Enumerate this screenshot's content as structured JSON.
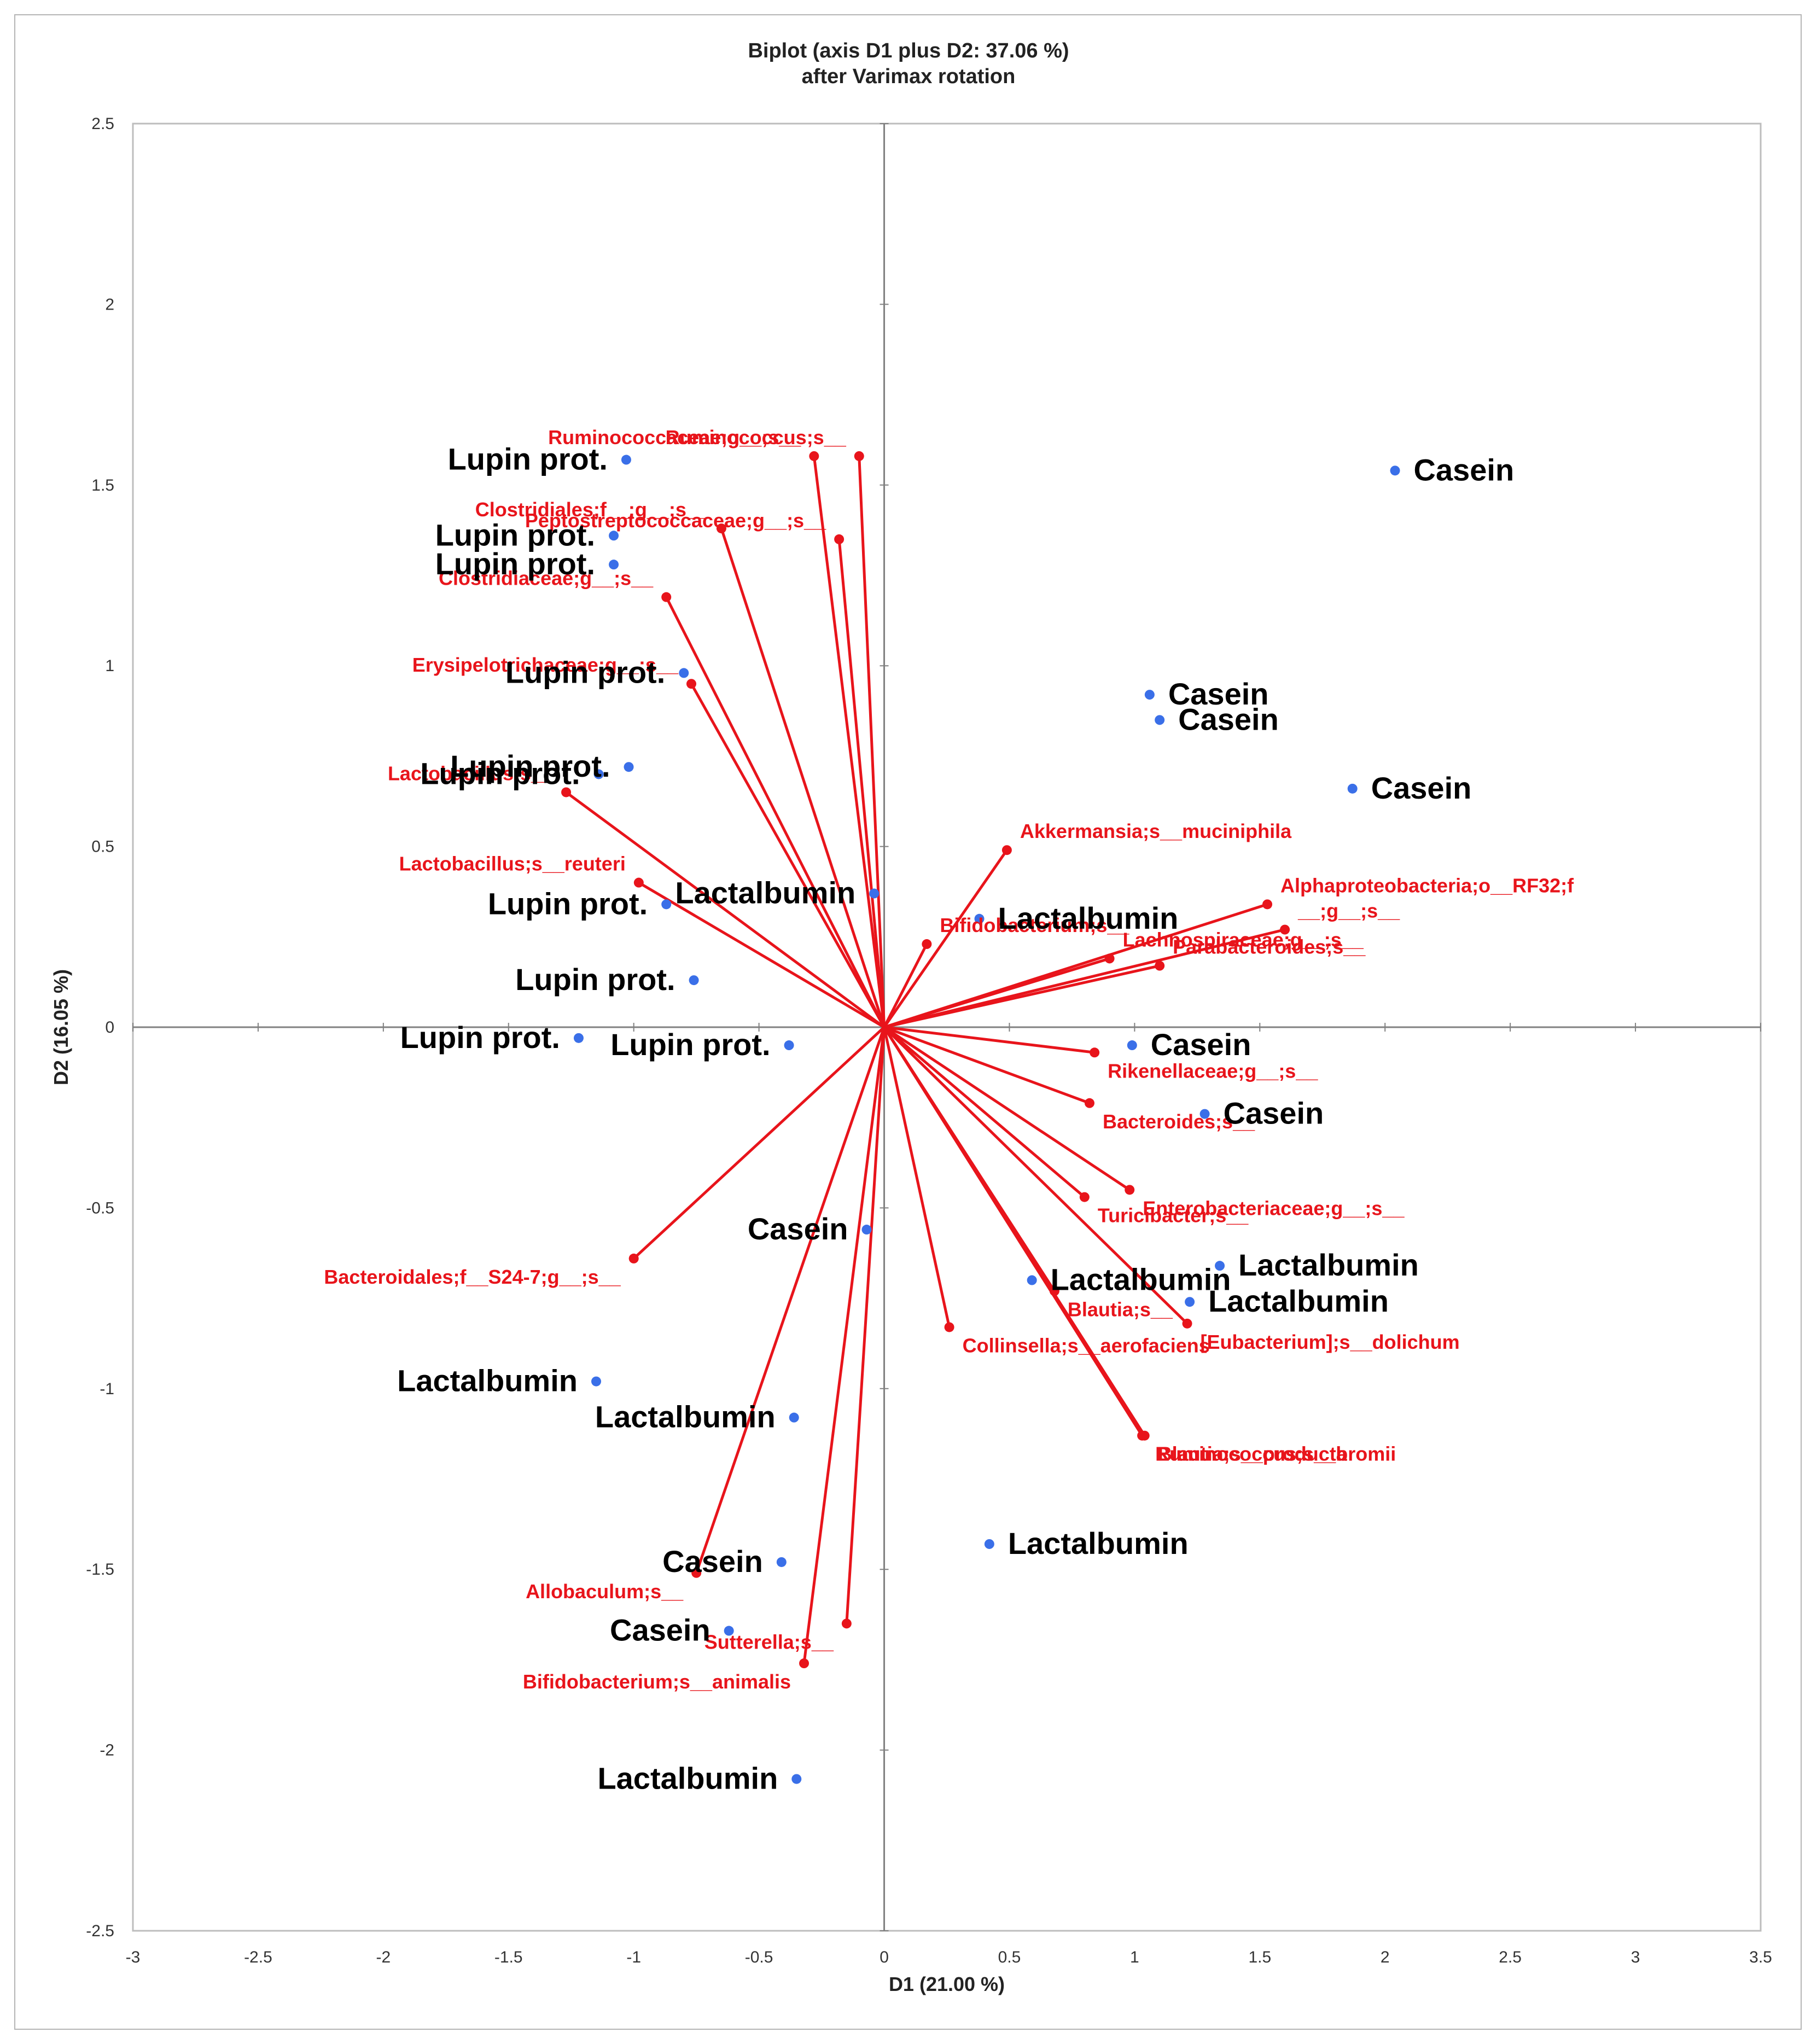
{
  "chart_data": {
    "type": "scatter",
    "subtype": "biplot",
    "title": "Biplot (axis D1 plus D2: 37.06 %)",
    "subtitle": "after Varimax rotation",
    "xlabel": "D1 (21.00 %)",
    "ylabel": "D2 (16.05 %)",
    "xlim": [
      -3,
      3.5
    ],
    "ylim": [
      -2.5,
      2.5
    ],
    "x_ticks": [
      "-3",
      "-2.5",
      "-2",
      "-1.5",
      "-1",
      "-0.5",
      "0",
      "0.5",
      "1",
      "1.5",
      "2",
      "2.5",
      "3",
      "3.5"
    ],
    "y_ticks": [
      "2.5",
      "2",
      "1.5",
      "1",
      "0.5",
      "0",
      "-0.5",
      "-1",
      "-1.5",
      "-2",
      "-2.5"
    ],
    "grid": false,
    "colors": {
      "variables": "#e8141b",
      "observations": "#3a6fe8",
      "axes": "#808080"
    },
    "variables": [
      {
        "label": "Ruminococcaceae;g__;s__",
        "x": -0.28,
        "y": 1.58
      },
      {
        "label": "Ruminococcus;s__",
        "x": -0.1,
        "y": 1.58
      },
      {
        "label": "Peptostreptococcaceae;g__;s__",
        "x": -0.18,
        "y": 1.35
      },
      {
        "label": "Clostridiales;f__;g__;s__",
        "x": -0.65,
        "y": 1.38
      },
      {
        "label": "Clostridiaceae;g__;s__",
        "x": -0.87,
        "y": 1.19
      },
      {
        "label": "Erysipelotrichaceae;g__;s__",
        "x": -0.77,
        "y": 0.95
      },
      {
        "label": "Lactobacillus;s__",
        "x": -1.27,
        "y": 0.65
      },
      {
        "label": "Lactobacillus;s__reuteri",
        "x": -0.98,
        "y": 0.4
      },
      {
        "label": "Akkermansia;s__muciniphila",
        "x": 0.49,
        "y": 0.49
      },
      {
        "label": "Bifidobacterium;s__",
        "x": 0.17,
        "y": 0.23
      },
      {
        "label": "Alphaproteobacteria;o__RF32;f",
        "x": 1.53,
        "y": 0.34
      },
      {
        "label": "__;g__;s__",
        "x": 1.6,
        "y": 0.27
      },
      {
        "label": "Parabacteroides;s__",
        "x": 1.1,
        "y": 0.17
      },
      {
        "label": "Lachnospiraceae;g__;s__",
        "x": 0.9,
        "y": 0.19
      },
      {
        "label": "Rikenellaceae;g__;s__",
        "x": 0.84,
        "y": -0.07
      },
      {
        "label": "Bacteroides;s__",
        "x": 0.82,
        "y": -0.21
      },
      {
        "label": "Turicibacter;s__",
        "x": 0.8,
        "y": -0.47
      },
      {
        "label": "Enterobacteriaceae;g__;s__",
        "x": 0.98,
        "y": -0.45
      },
      {
        "label": "[Eubacterium];s__dolichum",
        "x": 1.21,
        "y": -0.82
      },
      {
        "label": "Blautia;s__",
        "x": 0.68,
        "y": -0.73
      },
      {
        "label": "Collinsella;s__aerofaciens",
        "x": 0.26,
        "y": -0.83
      },
      {
        "label": "Ruminococcus;s__bromii",
        "x": 1.03,
        "y": -1.13
      },
      {
        "label": "Blautia;s__producta",
        "x": 1.04,
        "y": -1.13
      },
      {
        "label": "Bacteroidales;f__S24-7;g__;s__",
        "x": -1.0,
        "y": -0.64
      },
      {
        "label": "Allobaculum;s__",
        "x": -0.75,
        "y": -1.51
      },
      {
        "label": "Sutterella;s__",
        "x": -0.15,
        "y": -1.65
      },
      {
        "label": "Bifidobacterium;s__animalis",
        "x": -0.32,
        "y": -1.76
      }
    ],
    "observations": [
      {
        "label": "Lupin prot.",
        "x": -1.03,
        "y": 1.57
      },
      {
        "label": "Lupin prot.",
        "x": -1.08,
        "y": 1.36
      },
      {
        "label": "Lupin prot.",
        "x": -1.08,
        "y": 1.28
      },
      {
        "label": "Lupin prot.",
        "x": -0.8,
        "y": 0.98
      },
      {
        "label": "Lupin prot.",
        "x": -1.02,
        "y": 0.72
      },
      {
        "label": "Lupin prot.",
        "x": -1.14,
        "y": 0.7
      },
      {
        "label": "Lupin prot.",
        "x": -0.87,
        "y": 0.34
      },
      {
        "label": "Lupin prot.",
        "x": -0.76,
        "y": 0.13
      },
      {
        "label": "Lupin prot.",
        "x": -1.22,
        "y": -0.03
      },
      {
        "label": "Lupin prot.",
        "x": -0.38,
        "y": -0.05
      },
      {
        "label": "Casein",
        "x": 2.04,
        "y": 1.54
      },
      {
        "label": "Casein",
        "x": 1.06,
        "y": 0.92
      },
      {
        "label": "Casein",
        "x": 1.1,
        "y": 0.85
      },
      {
        "label": "Casein",
        "x": 1.87,
        "y": 0.66
      },
      {
        "label": "Casein",
        "x": 0.99,
        "y": -0.05
      },
      {
        "label": "Casein",
        "x": 1.28,
        "y": -0.24
      },
      {
        "label": "Casein",
        "x": -0.07,
        "y": -0.56
      },
      {
        "label": "Casein",
        "x": -0.41,
        "y": -1.48
      },
      {
        "label": "Casein",
        "x": -0.62,
        "y": -1.67
      },
      {
        "label": "Lactalbumin",
        "x": -0.04,
        "y": 0.37
      },
      {
        "label": "Lactalbumin",
        "x": 0.38,
        "y": 0.3
      },
      {
        "label": "Lactalbumin",
        "x": 1.34,
        "y": -0.66
      },
      {
        "label": "Lactalbumin",
        "x": 1.22,
        "y": -0.76
      },
      {
        "label": "Lactalbumin",
        "x": 0.59,
        "y": -0.7
      },
      {
        "label": "Lactalbumin",
        "x": -1.15,
        "y": -0.98
      },
      {
        "label": "Lactalbumin",
        "x": -0.36,
        "y": -1.08
      },
      {
        "label": "Lactalbumin",
        "x": 0.42,
        "y": -1.43
      },
      {
        "label": "Lactalbumin",
        "x": -0.35,
        "y": -2.08
      }
    ]
  }
}
